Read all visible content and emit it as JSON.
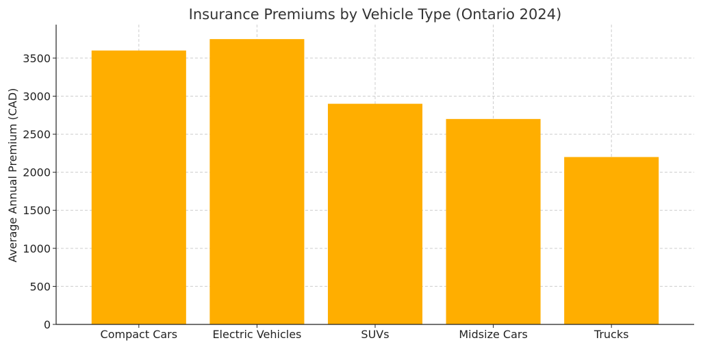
{
  "chart_data": {
    "type": "bar",
    "title": "Insurance Premiums by Vehicle Type (Ontario 2024)",
    "xlabel": "",
    "ylabel": "Average Annual Premium (CAD)",
    "categories": [
      "Compact Cars",
      "Electric Vehicles",
      "SUVs",
      "Midsize Cars",
      "Trucks"
    ],
    "values": [
      3600,
      3750,
      2900,
      2700,
      2200
    ],
    "ylim": [
      0,
      3940
    ],
    "yticks": [
      0,
      500,
      1000,
      1500,
      2000,
      2500,
      3000,
      3500
    ],
    "grid": true,
    "bar_color": "#FFAE00"
  }
}
